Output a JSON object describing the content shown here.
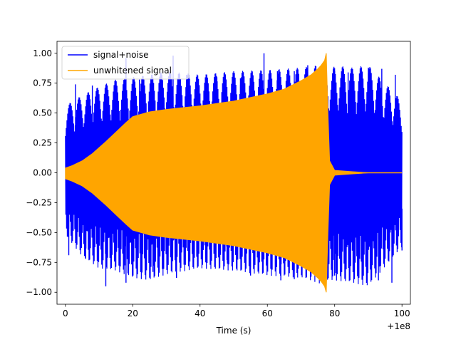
{
  "chart_data": {
    "type": "line",
    "xlabel": "Time (s)",
    "ylabel": "",
    "title": "",
    "x_offset_label": "+1e8",
    "xlim": [
      -2.5,
      102.5
    ],
    "ylim": [
      -1.1,
      1.1
    ],
    "xticks": [
      0,
      20,
      40,
      60,
      80,
      100
    ],
    "xtick_labels": [
      "0",
      "20",
      "40",
      "60",
      "80",
      "100"
    ],
    "yticks": [
      -1.0,
      -0.75,
      -0.5,
      -0.25,
      0.0,
      0.25,
      0.5,
      0.75,
      1.0
    ],
    "ytick_labels": [
      "−1.00",
      "−0.75",
      "−0.50",
      "−0.25",
      "0.00",
      "0.25",
      "0.50",
      "0.75",
      "1.00"
    ],
    "legend_position": "upper-left",
    "grid": false,
    "series": [
      {
        "name": "signal+noise",
        "color": "#0000ff",
        "envelope": {
          "t": [
            0,
            5,
            10,
            15,
            20,
            25,
            30,
            40,
            50,
            60,
            70,
            75,
            77,
            78,
            79,
            80,
            85,
            90,
            100
          ],
          "upper": [
            0.56,
            0.65,
            0.72,
            0.78,
            0.8,
            0.82,
            0.85,
            0.82,
            0.85,
            0.86,
            0.88,
            0.9,
            0.9,
            0.88,
            0.85,
            0.9,
            0.88,
            0.9,
            0.6
          ],
          "lower": [
            -0.52,
            -0.7,
            -0.8,
            -0.82,
            -0.88,
            -0.9,
            -0.85,
            -0.8,
            -0.82,
            -0.86,
            -0.88,
            -0.92,
            -0.95,
            -0.9,
            -0.9,
            -0.9,
            -0.92,
            -0.95,
            -0.62
          ]
        },
        "spikes_upper": [
          [
            3,
            0.74
          ],
          [
            8,
            0.73
          ],
          [
            12,
            0.72
          ],
          [
            18,
            0.96
          ],
          [
            22,
            0.78
          ],
          [
            32,
            0.98
          ],
          [
            36,
            0.82
          ],
          [
            45,
            0.8
          ],
          [
            52,
            0.79
          ],
          [
            59,
            1.0
          ],
          [
            63,
            0.85
          ],
          [
            68,
            0.85
          ],
          [
            72,
            0.9
          ],
          [
            80,
            0.85
          ],
          [
            84,
            0.84
          ],
          [
            90,
            0.88
          ],
          [
            94,
            0.87
          ],
          [
            98,
            0.82
          ]
        ],
        "spikes_lower": [
          [
            1,
            -0.69
          ],
          [
            6,
            -0.72
          ],
          [
            12,
            -0.95
          ],
          [
            18,
            -0.92
          ],
          [
            26,
            -0.83
          ],
          [
            33,
            -0.88
          ],
          [
            38,
            -0.7
          ],
          [
            48,
            -0.73
          ],
          [
            55,
            -0.86
          ],
          [
            64,
            -0.9
          ],
          [
            68,
            -0.89
          ],
          [
            74,
            -0.84
          ],
          [
            80,
            -0.86
          ],
          [
            87,
            -0.88
          ],
          [
            93,
            -0.9
          ],
          [
            97,
            -0.92
          ],
          [
            100,
            -0.65
          ]
        ]
      },
      {
        "name": "unwhitened signal",
        "color": "#ffa500",
        "envelope": {
          "t": [
            0,
            2,
            5,
            8,
            10,
            12,
            15,
            18,
            20,
            25,
            30,
            40,
            50,
            60,
            65,
            70,
            73,
            75,
            76,
            77,
            77.5,
            78,
            78.5,
            80,
            85,
            90
          ],
          "upper": [
            0.04,
            0.06,
            0.1,
            0.16,
            0.21,
            0.26,
            0.34,
            0.42,
            0.47,
            0.51,
            0.53,
            0.56,
            0.6,
            0.66,
            0.7,
            0.77,
            0.82,
            0.87,
            0.9,
            0.94,
            1.0,
            0.5,
            0.1,
            0.02,
            0.01,
            0.0
          ],
          "lower": [
            -0.05,
            -0.07,
            -0.11,
            -0.17,
            -0.22,
            -0.27,
            -0.35,
            -0.43,
            -0.48,
            -0.52,
            -0.54,
            -0.57,
            -0.61,
            -0.67,
            -0.71,
            -0.78,
            -0.83,
            -0.88,
            -0.91,
            -0.95,
            -1.0,
            -0.5,
            -0.1,
            -0.02,
            -0.01,
            0.0
          ]
        }
      }
    ]
  }
}
